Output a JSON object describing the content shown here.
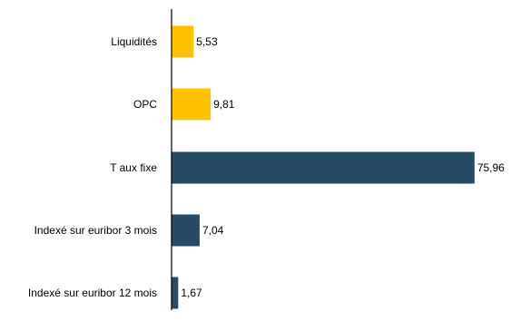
{
  "chart_data": {
    "type": "bar",
    "orientation": "horizontal",
    "categories": [
      "Liquidités",
      "OPC",
      "T aux fixe",
      "Indexé sur euribor 3 mois",
      "Indexé sur euribor 12 mois"
    ],
    "values": [
      5.53,
      9.81,
      75.96,
      7.04,
      1.67
    ],
    "value_labels": [
      "5,53",
      "9,81",
      "75,96",
      "7,04",
      "1,67"
    ],
    "bar_colors": [
      "#FFC000",
      "#FFC000",
      "#264A63",
      "#264A63",
      "#264A63"
    ],
    "axis_color": "#000000",
    "xlim": [
      0,
      76
    ],
    "grid": false,
    "legend": "none"
  }
}
